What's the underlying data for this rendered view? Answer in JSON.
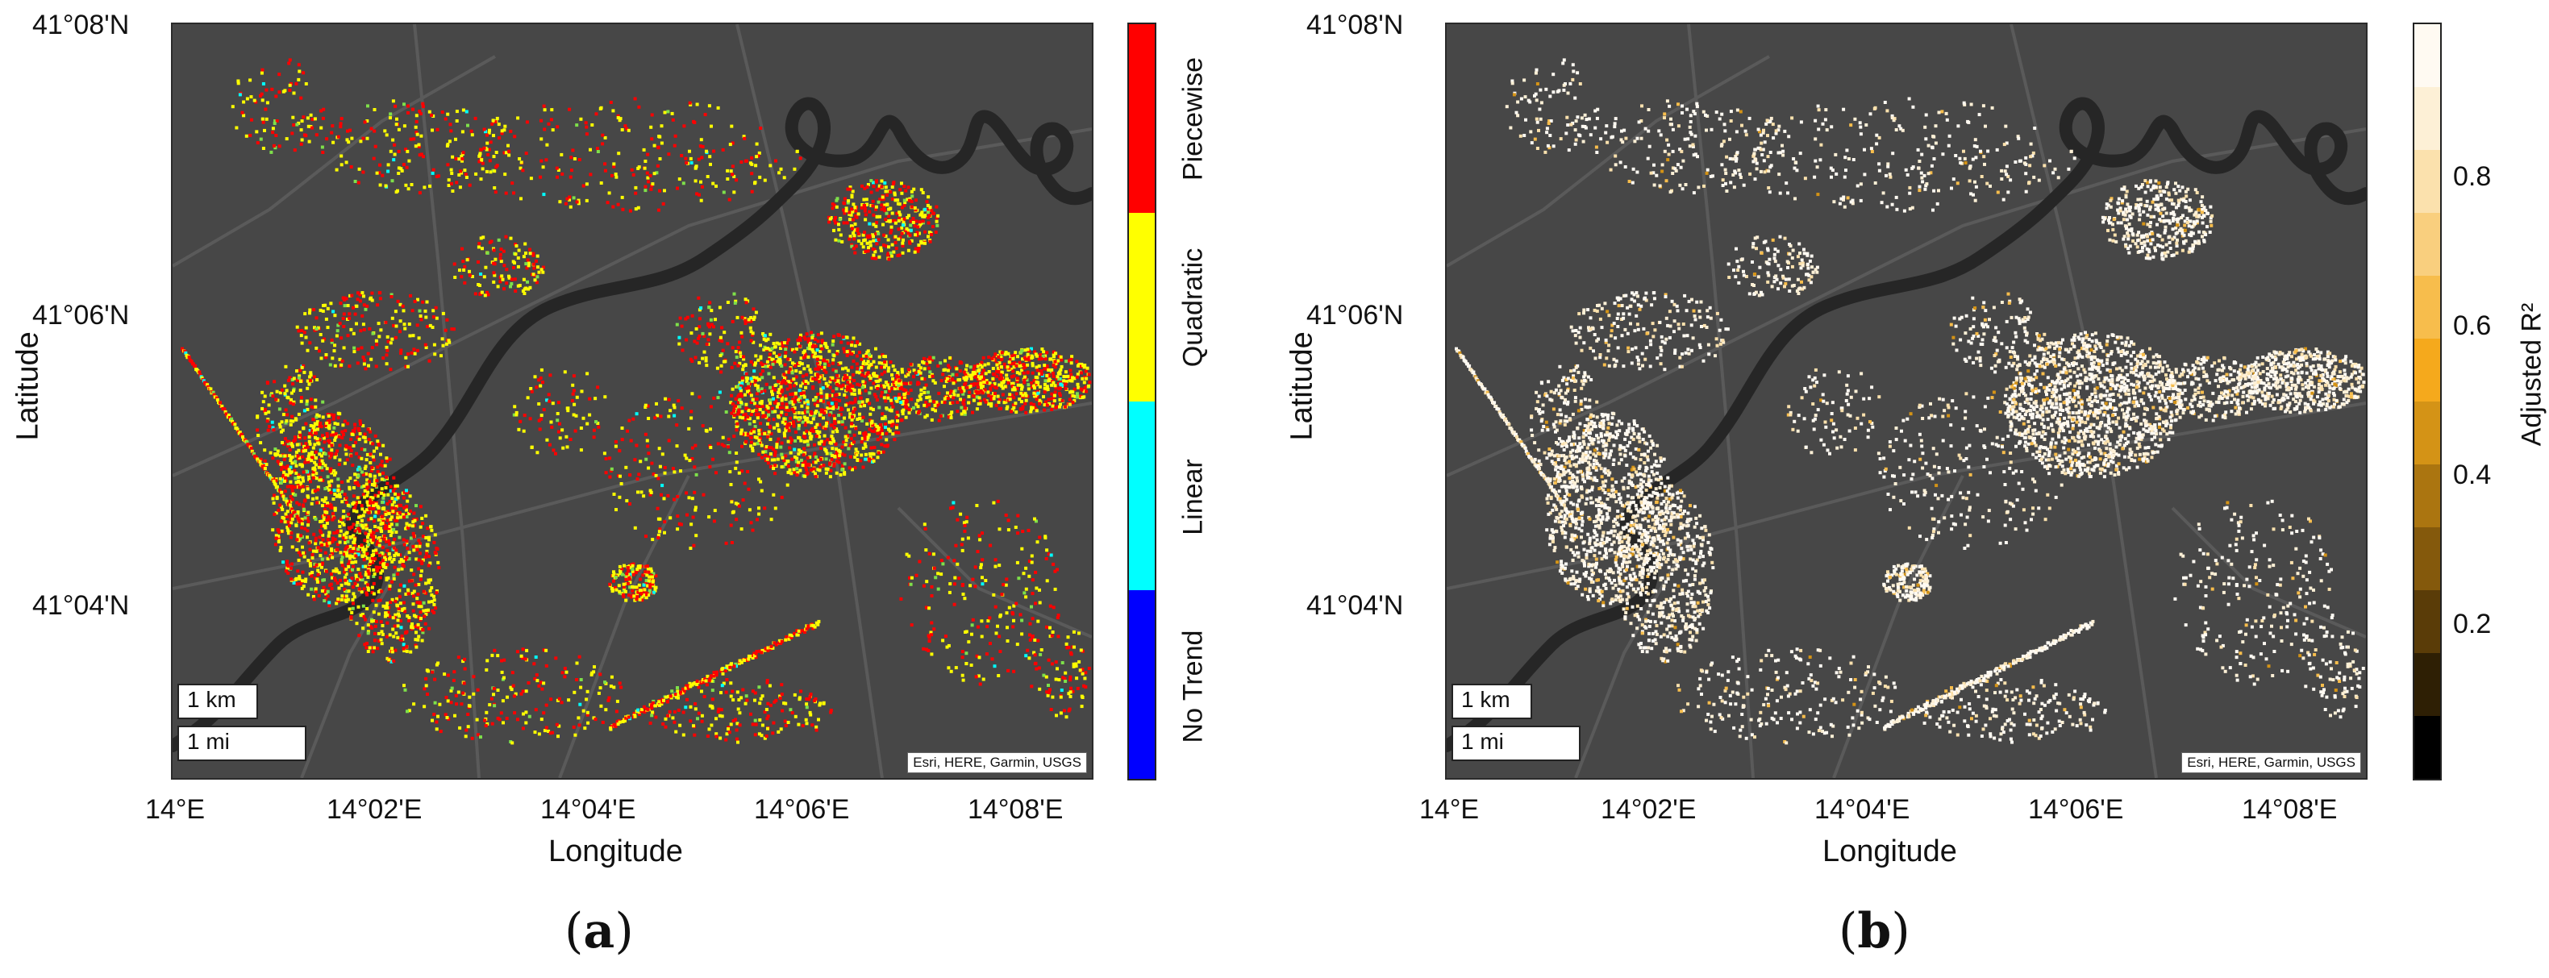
{
  "panels": [
    {
      "id": "a",
      "letter_open": "(",
      "letter": "a",
      "letter_close": ")",
      "x_ticks": [
        "14°E",
        "14°02'E",
        "14°04'E",
        "14°06'E",
        "14°08'E"
      ],
      "y_ticks": [
        "41°08'N",
        "41°06'N",
        "41°04'N"
      ],
      "xlabel": "Longitude",
      "ylabel": "Latitude",
      "scalebar_km": "1 km",
      "scalebar_mi": "1 mi",
      "attribution": "Esri, HERE, Garmin, USGS",
      "legend": {
        "type": "categorical",
        "categories": [
          {
            "label": "Piecewise",
            "color": "#ff0000"
          },
          {
            "label": "Quadratic",
            "color": "#ffff00"
          },
          {
            "label": "Linear",
            "color": "#00ffff"
          },
          {
            "label": "No Trend",
            "color": "#0000ff"
          }
        ]
      }
    },
    {
      "id": "b",
      "letter_open": "(",
      "letter": "b",
      "letter_close": ")",
      "x_ticks": [
        "14°E",
        "14°02'E",
        "14°04'E",
        "14°06'E",
        "14°08'E"
      ],
      "y_ticks": [
        "41°08'N",
        "41°06'N",
        "41°04'N"
      ],
      "xlabel": "Longitude",
      "ylabel": "Latitude",
      "scalebar_km": "1 km",
      "scalebar_mi": "1 mi",
      "attribution": "Esri, HERE, Garmin, USGS",
      "legend": {
        "type": "continuous",
        "label": "Adjusted R²",
        "ticks": [
          "0.8",
          "0.6",
          "0.4",
          "0.2"
        ],
        "colors": [
          "#000000",
          "#2e1f04",
          "#5a3c08",
          "#84590c",
          "#ab7510",
          "#d49316",
          "#f5a91c",
          "#f7bd4c",
          "#f9cf7e",
          "#fbe1ad",
          "#fdf0d6",
          "#fffaf2"
        ]
      }
    }
  ],
  "colors": {
    "map_background": "#474747",
    "river": "#262626",
    "roads": "#5a5a5a"
  }
}
